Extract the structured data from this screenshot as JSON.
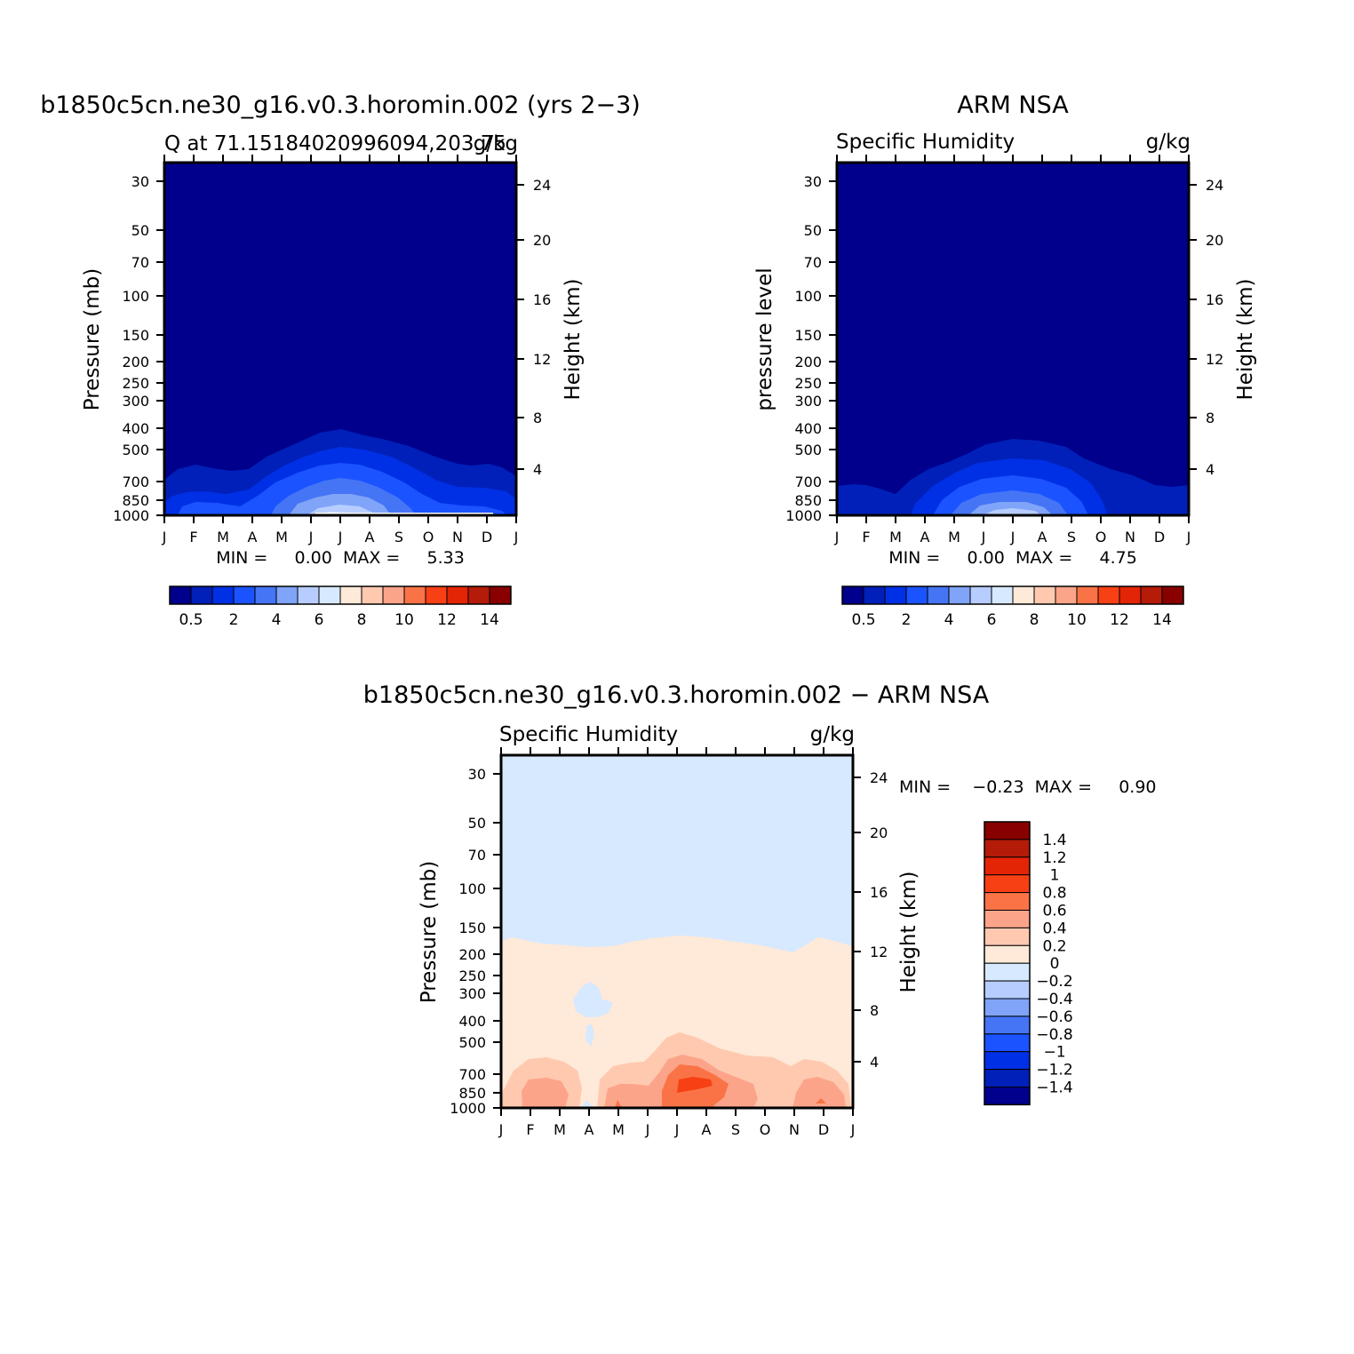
{
  "chart_data": [
    {
      "type": "heatmap",
      "title": "b1850c5cn.ne30_g16.v0.3.horomin.002 (yrs 2−3)",
      "subtitle_left": "Q at 71.15184020996094,203.75",
      "subtitle_right": "g/kg",
      "ylabel": "Pressure (mb)",
      "ylabel_right": "Height (km)",
      "months": [
        "J",
        "F",
        "M",
        "A",
        "M",
        "J",
        "J",
        "A",
        "S",
        "O",
        "N",
        "D",
        "J"
      ],
      "pressure_ticks": [
        "30",
        "50",
        "70",
        "100",
        "150",
        "200",
        "250",
        "300",
        "400",
        "500",
        "700",
        "850",
        "1000"
      ],
      "height_ticks": [
        "24",
        "20",
        "16",
        "12",
        "8",
        "4"
      ],
      "stats_text": "MIN =     0.00  MAX =     5.33",
      "min": 0.0,
      "max": 5.33,
      "colorbar_labels": [
        "0.5",
        "2",
        "4",
        "6",
        "8",
        "10",
        "12",
        "14"
      ],
      "colorbar_colors": [
        "#00008c",
        "#0020b9",
        "#0030e5",
        "#1a53ff",
        "#4575f5",
        "#80a4f8",
        "#b7cdff",
        "#d7e9ff",
        "#ffe9d8",
        "#ffc9b0",
        "#fca48a",
        "#fa7346",
        "#f84015",
        "#e32405",
        "#b41b08",
        "#880000"
      ]
    },
    {
      "type": "heatmap",
      "title": "ARM NSA",
      "subtitle_left": "Specific Humidity",
      "subtitle_right": "g/kg",
      "ylabel": "pressure level",
      "ylabel_right": "Height (km)",
      "months": [
        "J",
        "F",
        "M",
        "A",
        "M",
        "J",
        "J",
        "A",
        "S",
        "O",
        "N",
        "D",
        "J"
      ],
      "pressure_ticks": [
        "30",
        "50",
        "70",
        "100",
        "150",
        "200",
        "250",
        "300",
        "400",
        "500",
        "700",
        "850",
        "1000"
      ],
      "height_ticks": [
        "24",
        "20",
        "16",
        "12",
        "8",
        "4"
      ],
      "stats_text": "MIN =     0.00  MAX =     4.75",
      "min": 0.0,
      "max": 4.75,
      "colorbar_labels": [
        "0.5",
        "2",
        "4",
        "6",
        "8",
        "10",
        "12",
        "14"
      ],
      "colorbar_colors": [
        "#00008c",
        "#0020b9",
        "#0030e5",
        "#1a53ff",
        "#4575f5",
        "#80a4f8",
        "#b7cdff",
        "#d7e9ff",
        "#ffe9d8",
        "#ffc9b0",
        "#fca48a",
        "#fa7346",
        "#f84015",
        "#e32405",
        "#b41b08",
        "#880000"
      ]
    },
    {
      "type": "heatmap",
      "title": "b1850c5cn.ne30_g16.v0.3.horomin.002 − ARM NSA",
      "subtitle_left": "Specific Humidity",
      "subtitle_right": "g/kg",
      "ylabel": "Pressure (mb)",
      "ylabel_right": "Height (km)",
      "months": [
        "J",
        "F",
        "M",
        "A",
        "M",
        "J",
        "J",
        "A",
        "S",
        "O",
        "N",
        "D",
        "J"
      ],
      "pressure_ticks": [
        "30",
        "50",
        "70",
        "100",
        "150",
        "200",
        "250",
        "300",
        "400",
        "500",
        "700",
        "850",
        "1000"
      ],
      "height_ticks": [
        "24",
        "20",
        "16",
        "12",
        "8",
        "4"
      ],
      "stats_text": "MIN =    −0.23  MAX =     0.90",
      "min": -0.23,
      "max": 0.9,
      "colorbar_labels": [
        "1.4",
        "1.2",
        "1",
        "0.8",
        "0.6",
        "0.4",
        "0.2",
        "0",
        "−0.2",
        "−0.4",
        "−0.6",
        "−0.8",
        "−1",
        "−1.2",
        "−1.4"
      ],
      "colorbar_colors": [
        "#880000",
        "#b41b08",
        "#e32405",
        "#f84015",
        "#fa7346",
        "#fca48a",
        "#ffc9b0",
        "#ffe9d8",
        "#d7e9ff",
        "#b7cdff",
        "#80a4f8",
        "#4575f5",
        "#1a53ff",
        "#0030e5",
        "#0020b9",
        "#00008c"
      ]
    }
  ]
}
